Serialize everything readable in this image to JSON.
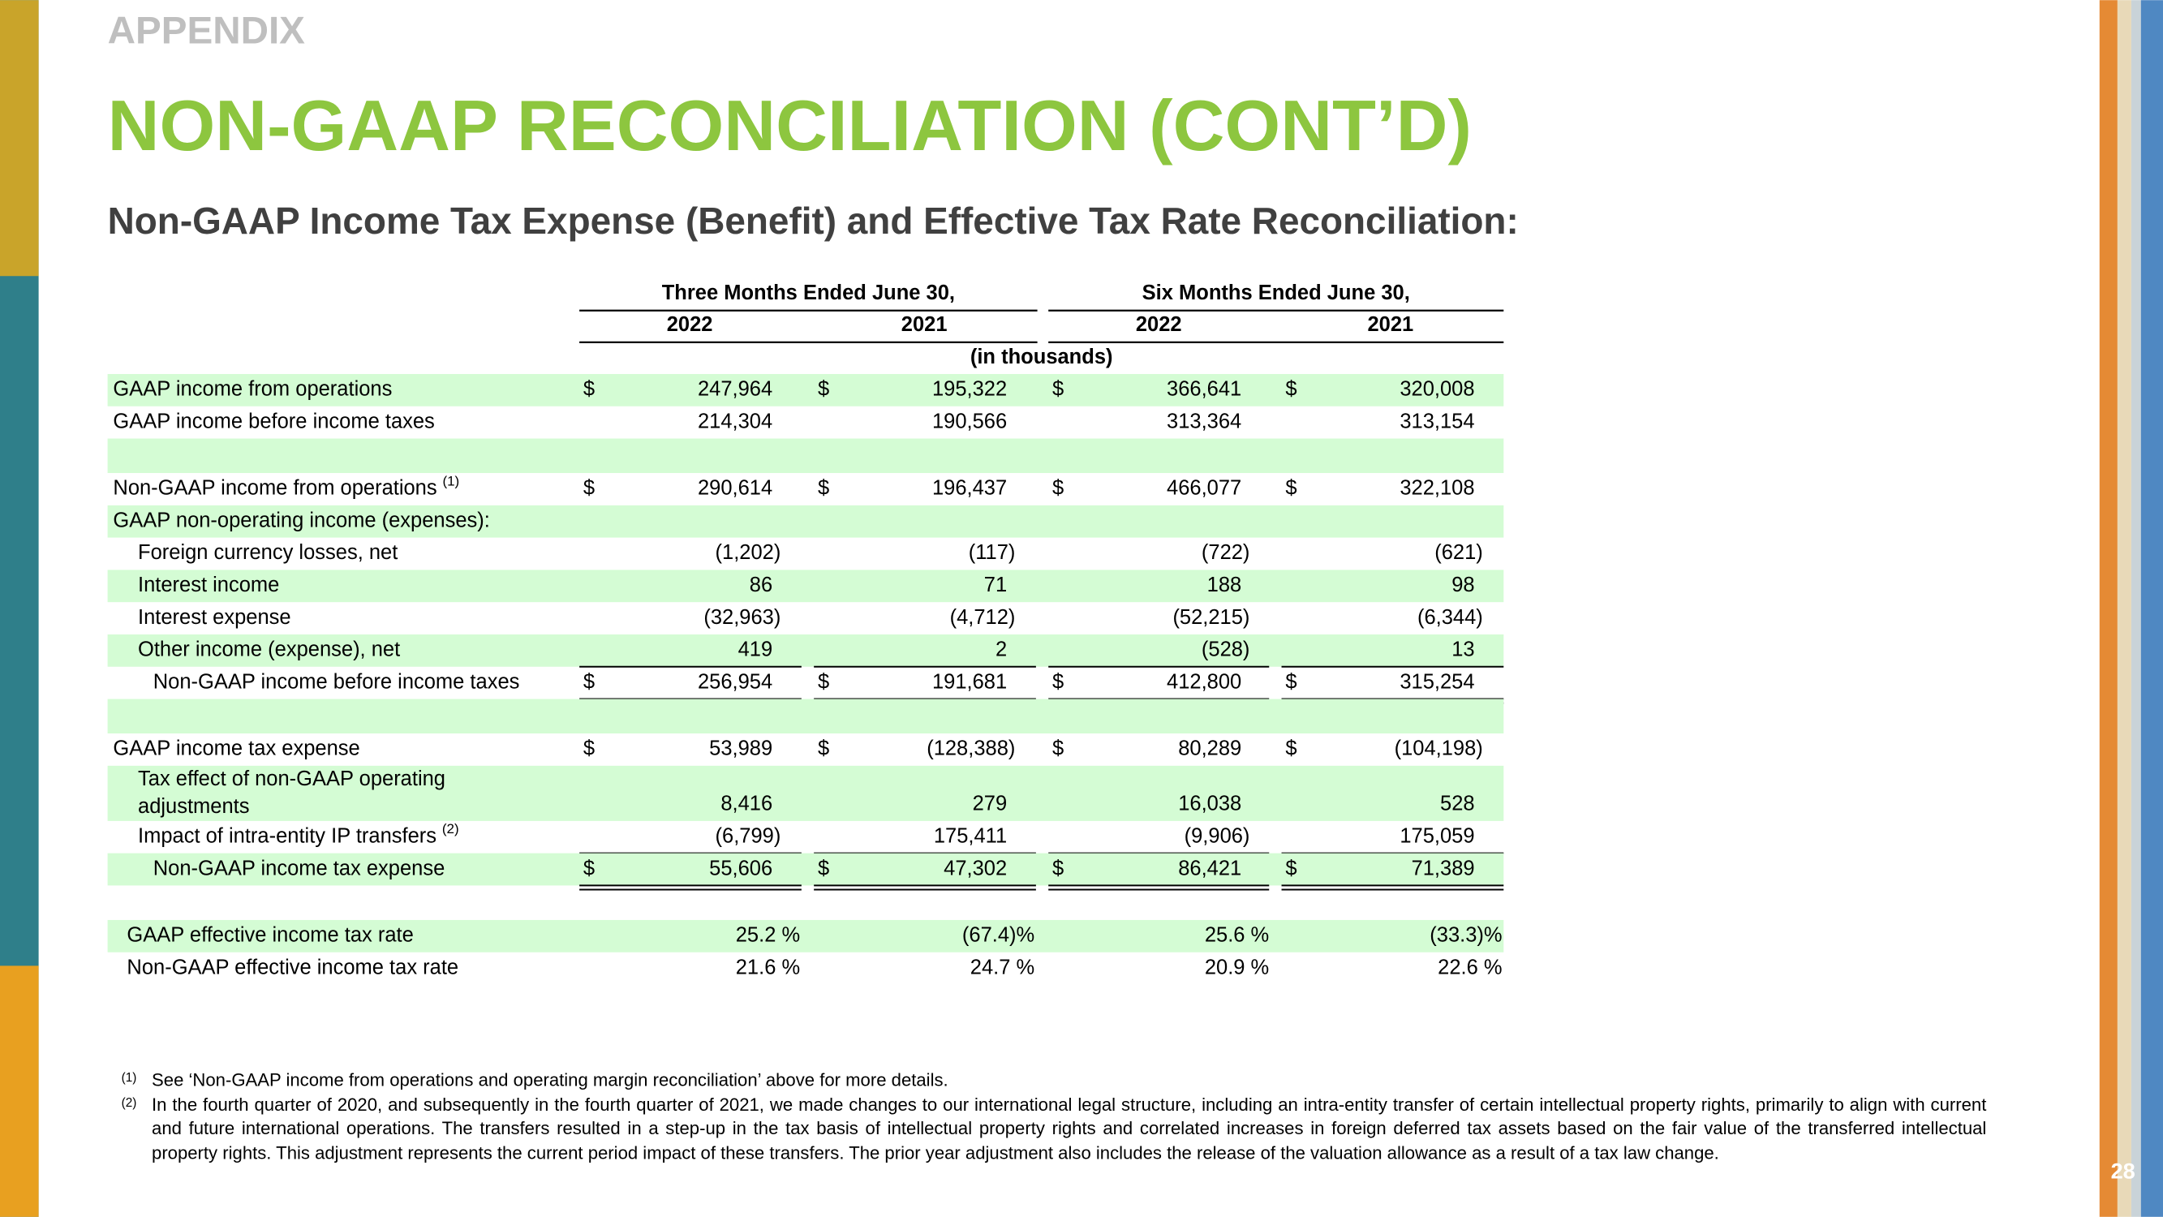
{
  "header": {
    "section": "APPENDIX",
    "title": "NON-GAAP RECONCILIATION (CONT’D)",
    "subtitle": "Non-GAAP Income Tax Expense (Benefit) and Effective Tax Rate Reconciliation:"
  },
  "table": {
    "column_groups": [
      "Three Months Ended June 30,",
      "Six Months Ended June 30,"
    ],
    "years": [
      "2022",
      "2021",
      "2022",
      "2021"
    ],
    "units": "(in thousands)",
    "currency": "$",
    "rows": [
      {
        "label": "GAAP income from operations",
        "values": [
          "247,964",
          "195,322",
          "366,641",
          "320,008"
        ],
        "dollar": true,
        "level": 0
      },
      {
        "label": "GAAP income before income taxes",
        "values": [
          "214,304",
          "190,566",
          "313,364",
          "313,154"
        ],
        "level": 0
      },
      {
        "label": "Non-GAAP income from operations",
        "note": "(1)",
        "values": [
          "290,614",
          "196,437",
          "466,077",
          "322,108"
        ],
        "dollar": true,
        "level": 0
      },
      {
        "label": "GAAP non-operating income (expenses):",
        "level": 0
      },
      {
        "label": "Foreign currency losses, net",
        "values": [
          "(1,202)",
          "(117)",
          "(722)",
          "(621)"
        ],
        "level": 1
      },
      {
        "label": "Interest income",
        "values": [
          "86",
          "71",
          "188",
          "98"
        ],
        "level": 1
      },
      {
        "label": "Interest expense",
        "values": [
          "(32,963)",
          "(4,712)",
          "(52,215)",
          "(6,344)"
        ],
        "level": 1
      },
      {
        "label": "Other income (expense), net",
        "values": [
          "419",
          "2",
          "(528)",
          "13"
        ],
        "level": 1,
        "rule": "single"
      },
      {
        "label": "Non-GAAP income before income taxes",
        "values": [
          "256,954",
          "191,681",
          "412,800",
          "315,254"
        ],
        "dollar": true,
        "level": 2,
        "rule": "double"
      },
      {
        "label": "GAAP income tax expense",
        "values": [
          "53,989",
          "(128,388)",
          "80,289",
          "(104,198)"
        ],
        "dollar": true,
        "level": 0
      },
      {
        "label": "Tax effect of non-GAAP operating adjustments",
        "values": [
          "8,416",
          "279",
          "16,038",
          "528"
        ],
        "level": 1
      },
      {
        "label": "Impact of intra-entity IP transfers",
        "note": "(2)",
        "values": [
          "(6,799)",
          "175,411",
          "(9,906)",
          "175,059"
        ],
        "level": 1,
        "rule": "single"
      },
      {
        "label": "Non-GAAP income tax expense",
        "values": [
          "55,606",
          "47,302",
          "86,421",
          "71,389"
        ],
        "dollar": true,
        "level": 2,
        "rule": "double"
      },
      {
        "label": "GAAP effective income tax rate",
        "values": [
          "25.2 %",
          "(67.4)%",
          "25.6 %",
          "(33.3)%"
        ],
        "kind": "percent"
      },
      {
        "label": "Non-GAAP effective income tax rate",
        "values": [
          "21.6 %",
          "24.7 %",
          "20.9 %",
          "22.6 %"
        ],
        "kind": "percent"
      }
    ]
  },
  "footnotes": [
    {
      "marker": "(1)",
      "text": "See ‘Non-GAAP income from operations and operating margin reconciliation’ above for more details."
    },
    {
      "marker": "(2)",
      "text": "In the fourth quarter of 2020, and subsequently in the fourth quarter of 2021, we made changes to our international legal structure, including an intra-entity transfer of certain intellectual property rights, primarily to align with current and future international operations. The transfers resulted in a step-up in the tax basis of intellectual property rights and correlated increases in foreign deferred tax assets based on the fair value of the transferred intellectual property rights. This adjustment represents the current period impact of these transfers. The prior year adjustment also includes the release of the valuation allowance as a result of a tax law change."
    }
  ],
  "page_number": "28"
}
